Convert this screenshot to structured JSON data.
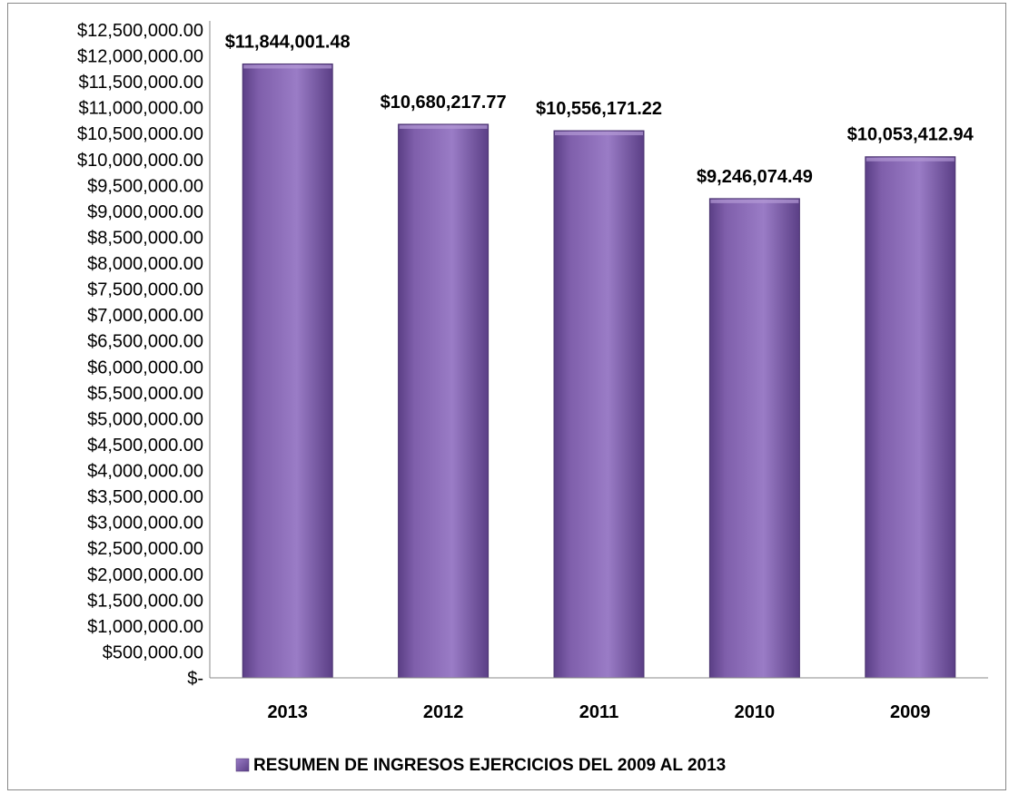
{
  "chart_data": {
    "type": "bar",
    "categories": [
      "2013",
      "2012",
      "2011",
      "2010",
      "2009"
    ],
    "series": [
      {
        "name": "RESUMEN DE INGRESOS EJERCICIOS DEL 2009 AL 2013",
        "values": [
          11844001.48,
          10680217.77,
          10556171.22,
          9246074.49,
          10053412.94
        ],
        "data_labels": [
          "$11,844,001.48",
          "$10,680,217.77",
          "$10,556,171.22",
          "$9,246,074.49",
          "$10,053,412.94"
        ]
      }
    ],
    "ylim": [
      0,
      12500000
    ],
    "ytick_step": 500000,
    "yticks": [
      "$-",
      "$500,000.00",
      "$1,000,000.00",
      "$1,500,000.00",
      "$2,000,000.00",
      "$2,500,000.00",
      "$3,000,000.00",
      "$3,500,000.00",
      "$4,000,000.00",
      "$4,500,000.00",
      "$5,000,000.00",
      "$5,500,000.00",
      "$6,000,000.00",
      "$6,500,000.00",
      "$7,000,000.00",
      "$7,500,000.00",
      "$8,000,000.00",
      "$8,500,000.00",
      "$9,000,000.00",
      "$9,500,000.00",
      "$10,000,000.00",
      "$10,500,000.00",
      "$11,000,000.00",
      "$11,500,000.00",
      "$12,000,000.00",
      "$12,500,000.00"
    ],
    "grid": false,
    "legend_position": "bottom",
    "bar_color": "#7f5fab",
    "bar_color_dark": "#5b3f86",
    "bar_color_light": "#9a7cc6"
  }
}
